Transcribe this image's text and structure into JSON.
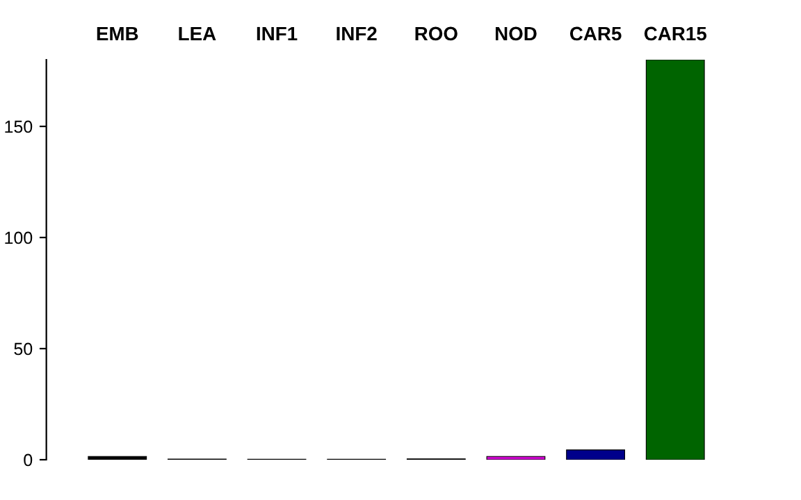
{
  "chart_data": {
    "type": "bar",
    "categories": [
      "EMB",
      "LEA",
      "INF1",
      "INF2",
      "ROO",
      "NOD",
      "CAR5",
      "CAR15"
    ],
    "values": [
      1.5,
      0.3,
      0.2,
      0.2,
      0.4,
      1.5,
      4.4,
      180
    ],
    "colors": [
      "#000000",
      "#8b2323",
      "#556b2f",
      "#4a4a6a",
      "#000000",
      "#cc00cc",
      "#00008b",
      "#006400"
    ],
    "ylim": [
      0,
      180
    ],
    "yticks": [
      0,
      50,
      100,
      150
    ],
    "grid": false
  }
}
